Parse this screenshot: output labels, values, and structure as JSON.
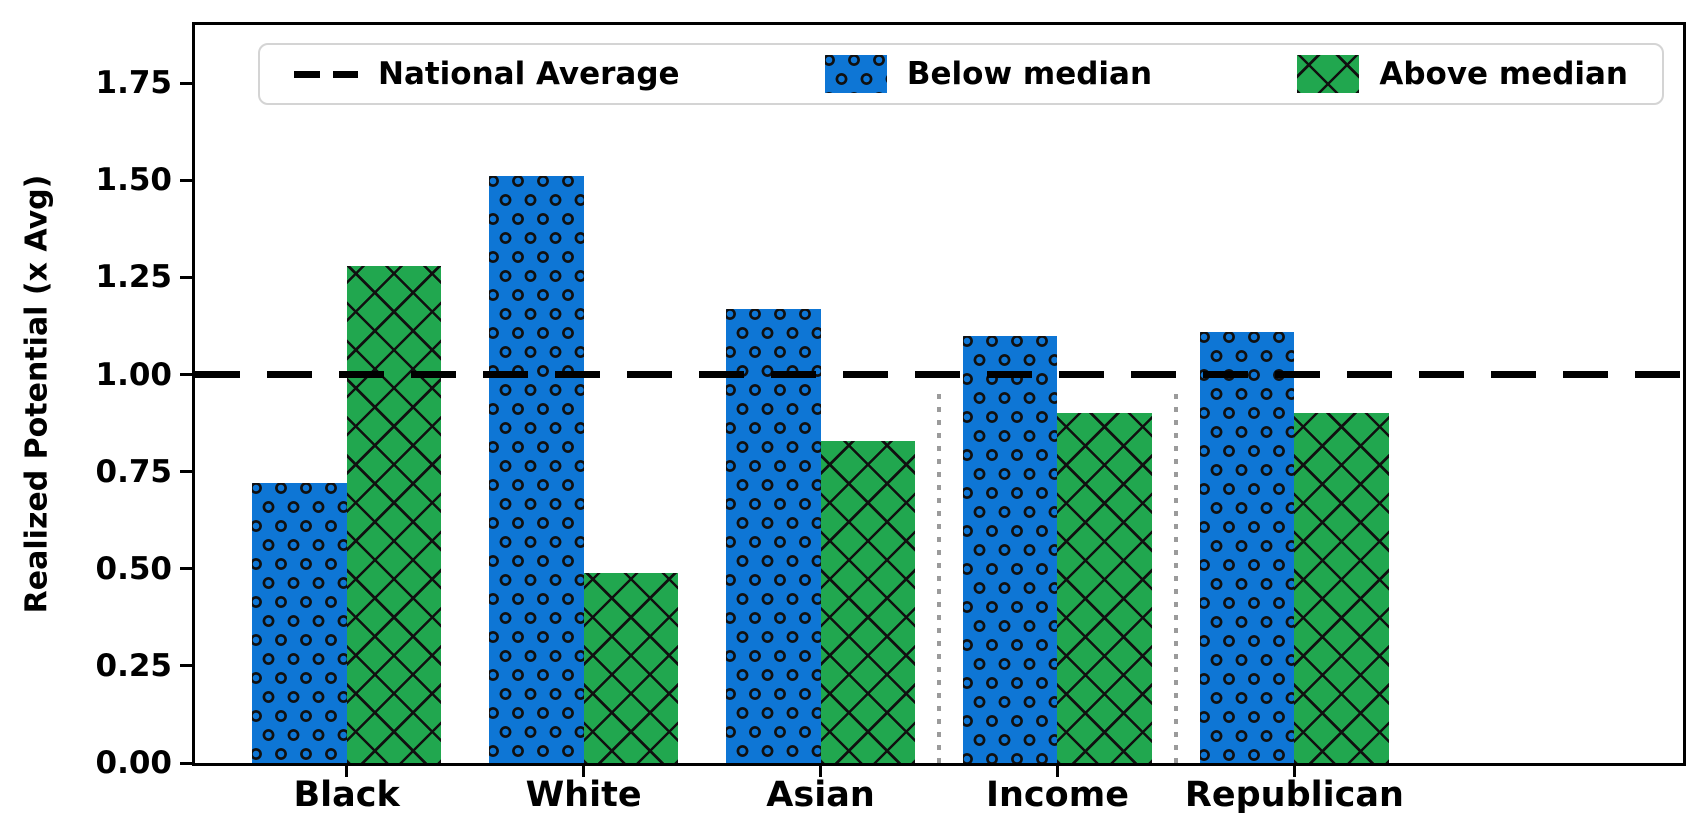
{
  "chart_data": {
    "type": "bar",
    "title": "",
    "categories": [
      "Black",
      "White",
      "Asian",
      "Income",
      "Republican"
    ],
    "series": [
      {
        "name": "Below median",
        "color": "#0E76D5",
        "hatch": "circles",
        "values": [
          0.72,
          1.51,
          1.17,
          1.1,
          1.11
        ]
      },
      {
        "name": "Above median",
        "color": "#21A74F",
        "hatch": "crosshatch",
        "values": [
          1.28,
          0.49,
          0.83,
          0.9,
          0.9
        ]
      }
    ],
    "reference_line": {
      "label": "National Average",
      "value": 1.0,
      "style": "dashed",
      "color": "#000000"
    },
    "separators_x": [
      2.5,
      3.5
    ],
    "separator_color": "#9b9b9b",
    "separator_top_value": 0.95,
    "xlabel": "",
    "ylabel": "Realized Potential (x Avg)",
    "yticks": [
      "0.00",
      "0.25",
      "0.50",
      "0.75",
      "1.00",
      "1.25",
      "1.50",
      "1.75"
    ],
    "ylim": [
      0,
      1.9
    ],
    "legend_position": "top",
    "grid": false
  }
}
